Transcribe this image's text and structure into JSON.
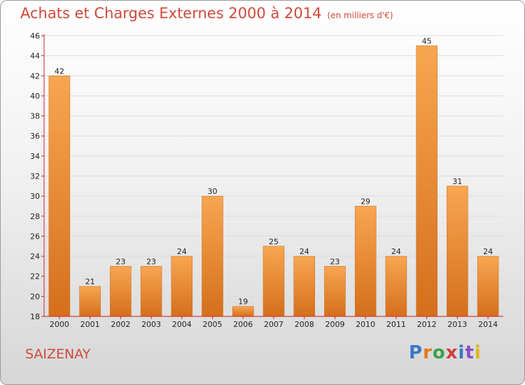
{
  "title": "Achats et Charges Externes 2000 à 2014",
  "subtitle": "(en milliers d'€)",
  "city": "SAIZENAY",
  "logo": {
    "text": "Proxiti",
    "colors": [
      "#3a78c6",
      "#e07a1c",
      "#3aa24a",
      "#d23c3c",
      "#3a78c6",
      "#8c4fc1",
      "#e0b21c"
    ]
  },
  "colors": {
    "bar_light": "#f6a24a",
    "bar_dark": "#d9731e",
    "axis": "#cc2222",
    "title": "#d0493a"
  },
  "chart_data": {
    "type": "bar",
    "categories": [
      "2000",
      "2001",
      "2002",
      "2003",
      "2004",
      "2005",
      "2006",
      "2007",
      "2008",
      "2009",
      "2010",
      "2011",
      "2012",
      "2013",
      "2014"
    ],
    "values": [
      42,
      21,
      23,
      23,
      24,
      30,
      19,
      25,
      24,
      23,
      29,
      24,
      45,
      31,
      24
    ],
    "title": "Achats et Charges Externes 2000 à 2014",
    "xlabel": "",
    "ylabel": "",
    "ylim": [
      18,
      46
    ],
    "yticks": [
      18,
      20,
      22,
      24,
      26,
      28,
      30,
      32,
      34,
      36,
      38,
      40,
      42,
      44,
      46
    ],
    "grid": true,
    "legend": "none"
  }
}
